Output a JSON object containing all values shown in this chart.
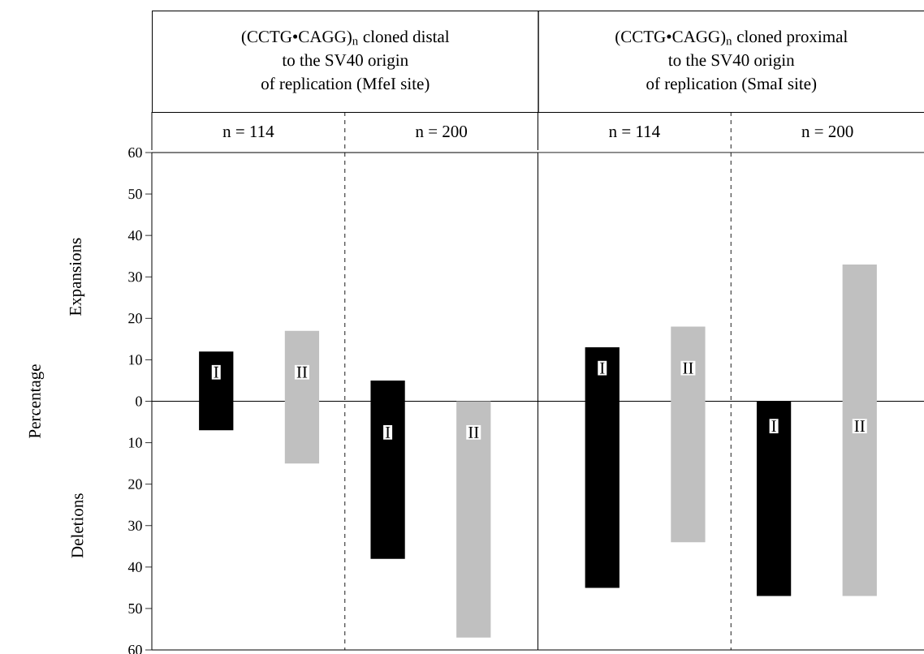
{
  "chart_data": [
    {
      "type": "bar",
      "ylabel": "Percentage",
      "categories": [
        "I",
        "II",
        "I",
        "II"
      ],
      "base": [
        -7,
        -15,
        -38,
        -57
      ],
      "values": [
        19,
        32,
        43,
        57
      ],
      "colors": [
        "#000000",
        "#c0c0c0",
        "#000000",
        "#c0c0c0"
      ],
      "ylim": [
        -60,
        60
      ],
      "yticks": [
        {
          "value": -60,
          "label": "60"
        },
        {
          "value": -50,
          "label": "50"
        },
        {
          "value": -40,
          "label": "40"
        },
        {
          "value": -30,
          "label": "30"
        },
        {
          "value": -20,
          "label": "20"
        },
        {
          "value": -10,
          "label": "10"
        },
        0,
        10,
        20,
        30,
        40,
        50,
        60
      ],
      "grid": false,
      "annotations": [
        "(CCTG•CAGG)$_{n}$ cloned distal",
        "to the SV40 origin",
        "of replication (MfeI site)",
        "n = 114",
        "n = 200",
        "Expansions",
        "Deletions"
      ]
    },
    {
      "type": "bar",
      "categories": [
        "I",
        "II",
        "I",
        "II"
      ],
      "base": [
        -45,
        -34,
        -47,
        -47
      ],
      "values": [
        58,
        52,
        47,
        80
      ],
      "colors": [
        "#000000",
        "#c0c0c0",
        "#000000",
        "#c0c0c0"
      ],
      "ylim": [
        -60,
        60
      ],
      "tick_labels": "x",
      "grid": false,
      "annotations": [
        "(CCTG•CAGG)$_{n}$ cloned proximal",
        "to the SV40 origin",
        "of replication (SmaI site)",
        "n = 114",
        "n = 200"
      ]
    }
  ]
}
